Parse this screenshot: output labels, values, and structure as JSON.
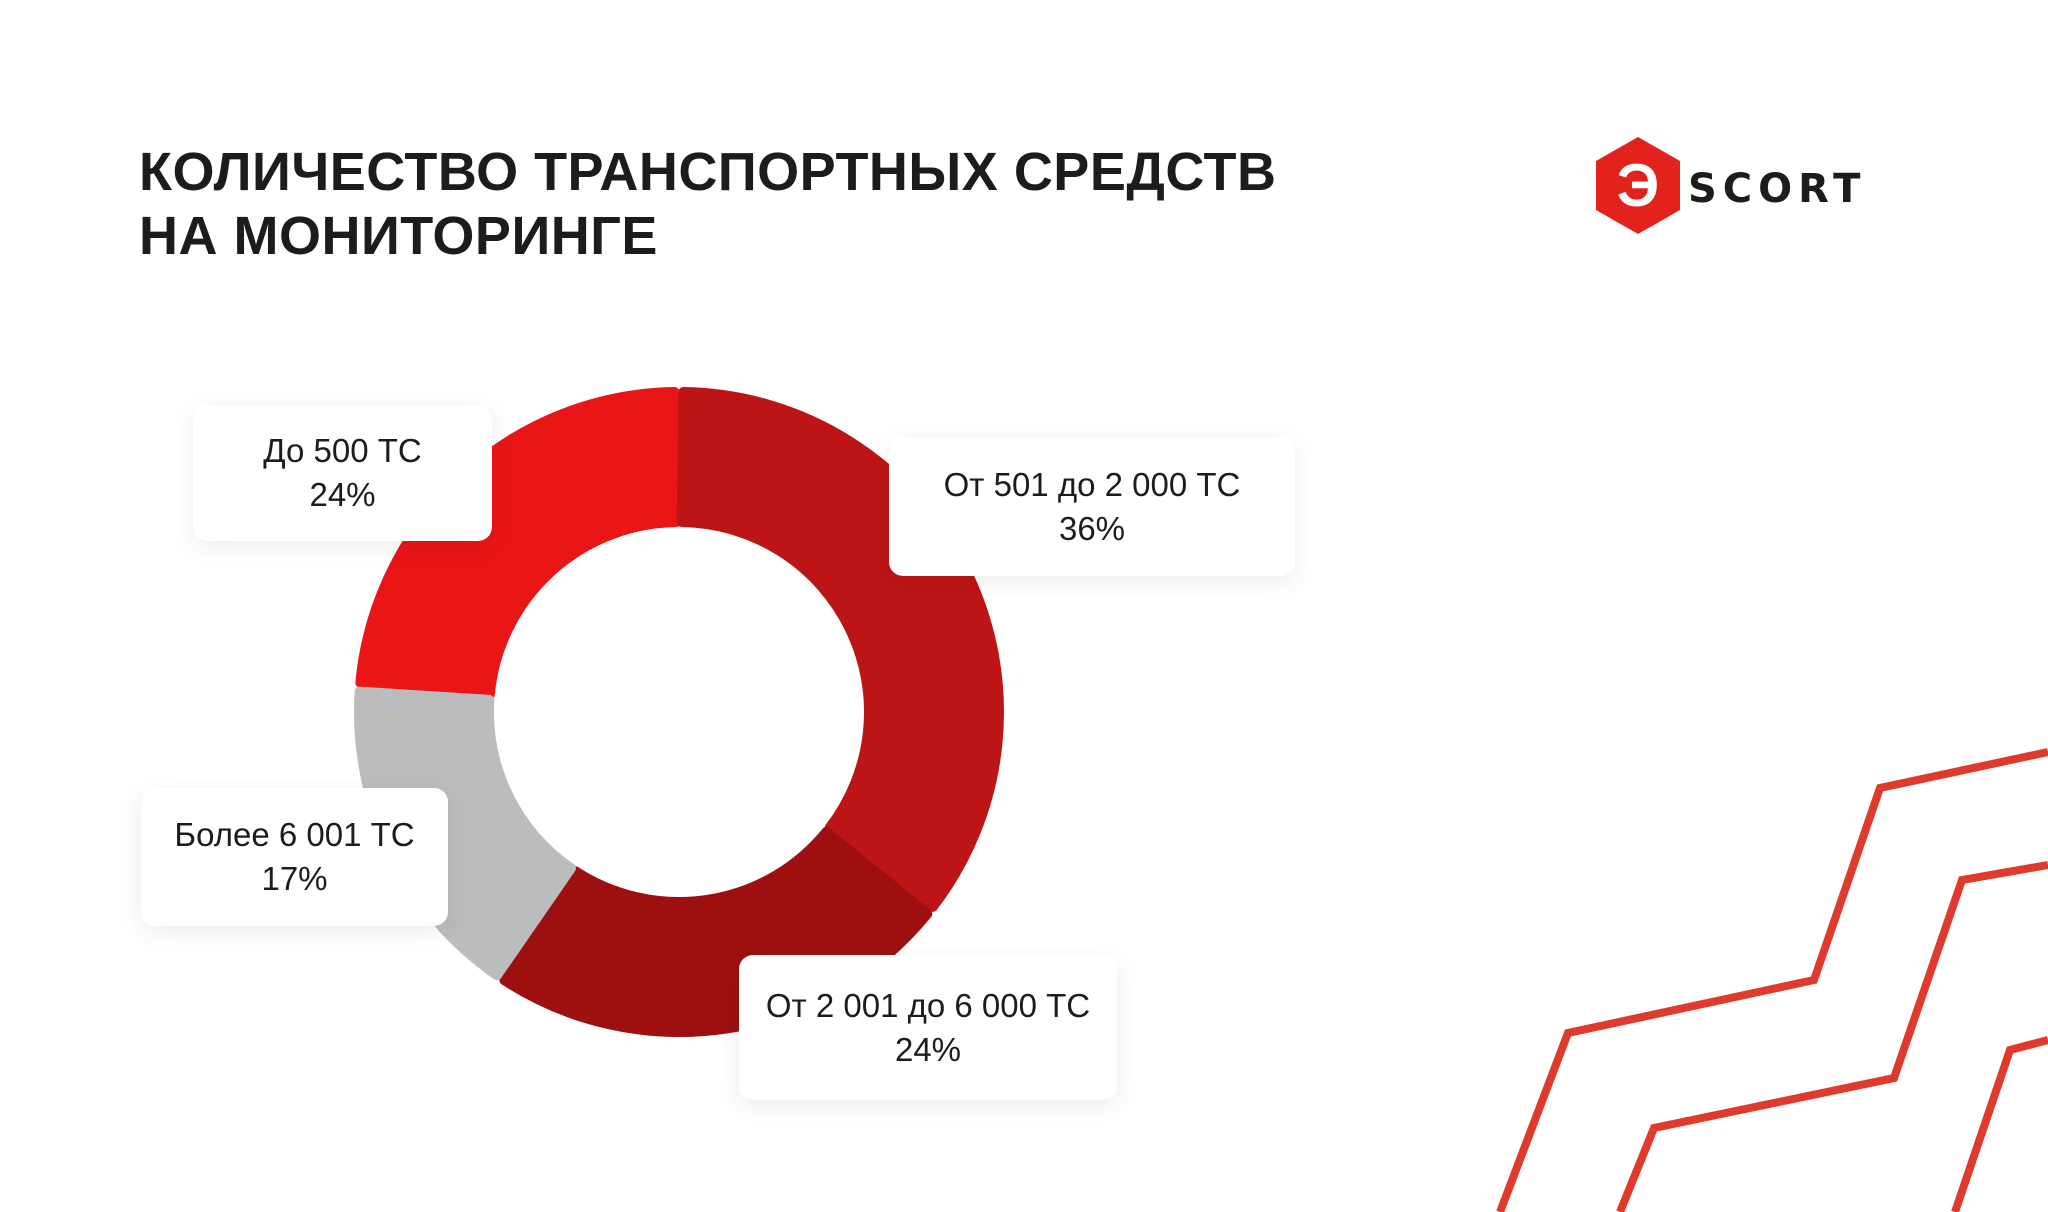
{
  "title": {
    "line1": "КОЛИЧЕСТВО ТРАНСПОРТНЫХ СРЕДСТВ",
    "line2": "НА МОНИТОРИНГЕ"
  },
  "logo": {
    "mark": "Э",
    "text": "SCORT"
  },
  "colors": {
    "brand_red": "#e3221b",
    "text": "#1c1c1c",
    "deco_red": "#e03a2c"
  },
  "chart_data": {
    "type": "pie",
    "variant": "donut",
    "categories": [
      "До 500 ТС",
      "От 501 до 2 000 ТС",
      "От 2 001 до 6 000 ТС",
      "Более 6 001 ТС"
    ],
    "values": [
      24,
      36,
      24,
      17
    ],
    "labels": [
      "24%",
      "36%",
      "24%",
      "17%"
    ],
    "colors": [
      "#ea1516",
      "#bd1515",
      "#9e1010",
      "#bbbcbe"
    ],
    "title": ""
  }
}
